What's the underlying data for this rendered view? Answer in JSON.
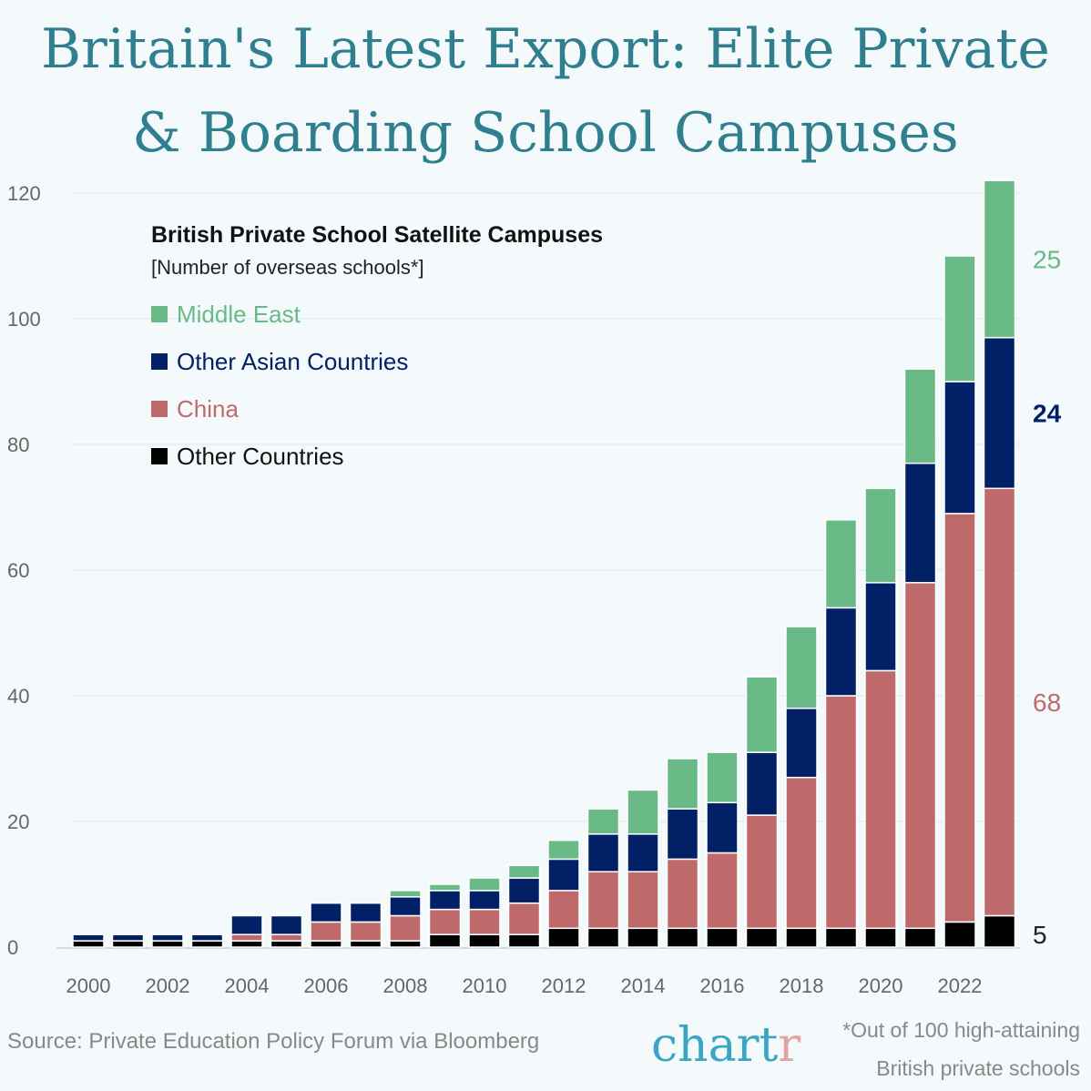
{
  "title_line1": "Britain's Latest Export: Elite Private",
  "title_line2": "& Boarding School Campuses",
  "source": "Source: Private Education Policy Forum via Bloomberg",
  "logo": {
    "main": "chart",
    "accent": "r"
  },
  "footnote_line1": "*Out of 100 high-attaining",
  "footnote_line2": "British private schools",
  "chart_data": {
    "type": "bar",
    "stacked": true,
    "title": "British Private School Satellite Campuses",
    "subtitle": "[Number of overseas schools*]",
    "xlabel": "",
    "ylabel": "",
    "ylim": [
      0,
      120
    ],
    "yticks": [
      0,
      20,
      40,
      60,
      80,
      100,
      120
    ],
    "xtick_labels": [
      "2000",
      "2002",
      "2004",
      "2006",
      "2008",
      "2010",
      "2012",
      "2014",
      "2016",
      "2018",
      "2020",
      "2022"
    ],
    "grid": true,
    "legend_position": "top-left",
    "categories": [
      "2000",
      "2001",
      "2002",
      "2003",
      "2004",
      "2005",
      "2006",
      "2007",
      "2008",
      "2009",
      "2010",
      "2011",
      "2012",
      "2013",
      "2014",
      "2015",
      "2016",
      "2017",
      "2018",
      "2019",
      "2020",
      "2021",
      "2022",
      "2023"
    ],
    "series": [
      {
        "name": "Other Countries",
        "color": "#000000",
        "values": [
          1,
          1,
          1,
          1,
          1,
          1,
          1,
          1,
          1,
          2,
          2,
          2,
          3,
          3,
          3,
          3,
          3,
          3,
          3,
          3,
          3,
          3,
          4,
          5
        ]
      },
      {
        "name": "China",
        "color": "#bf6a6a",
        "values": [
          0,
          0,
          0,
          0,
          1,
          1,
          3,
          3,
          4,
          4,
          4,
          5,
          6,
          9,
          9,
          11,
          12,
          18,
          24,
          37,
          41,
          55,
          65,
          68
        ]
      },
      {
        "name": "Other Asian Countries",
        "color": "#022066",
        "values": [
          1,
          1,
          1,
          1,
          3,
          3,
          3,
          3,
          3,
          3,
          3,
          4,
          5,
          6,
          6,
          8,
          8,
          10,
          11,
          14,
          14,
          19,
          21,
          24
        ]
      },
      {
        "name": "Middle East",
        "color": "#6aba88",
        "values": [
          0,
          0,
          0,
          0,
          0,
          0,
          0,
          0,
          1,
          1,
          2,
          2,
          3,
          4,
          7,
          8,
          8,
          12,
          13,
          14,
          15,
          15,
          20,
          25
        ]
      }
    ],
    "end_labels": [
      "5",
      "68",
      "24",
      "25"
    ]
  }
}
